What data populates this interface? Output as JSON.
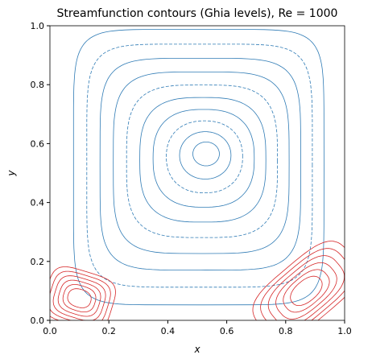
{
  "chart_data": {
    "type": "contour",
    "title": "Streamfunction contours (Ghia levels), Re = 1000",
    "x_label": "x",
    "y_label": "y",
    "xlim": [
      0,
      1
    ],
    "ylim": [
      0,
      1
    ],
    "xticks": [
      {
        "value": 0,
        "label": "0.0"
      },
      {
        "value": 0.2,
        "label": "0.2"
      },
      {
        "value": 0.4,
        "label": "0.4"
      },
      {
        "value": 0.6,
        "label": "0.6"
      },
      {
        "value": 0.8,
        "label": "0.8"
      },
      {
        "value": 1,
        "label": "1.0"
      }
    ],
    "yticks": [
      {
        "value": 0,
        "label": "0.0"
      },
      {
        "value": 0.2,
        "label": "0.2"
      },
      {
        "value": 0.4,
        "label": "0.4"
      },
      {
        "value": 0.6,
        "label": "0.6"
      },
      {
        "value": 0.8,
        "label": "0.8"
      },
      {
        "value": 1,
        "label": "1.0"
      }
    ]
  }
}
